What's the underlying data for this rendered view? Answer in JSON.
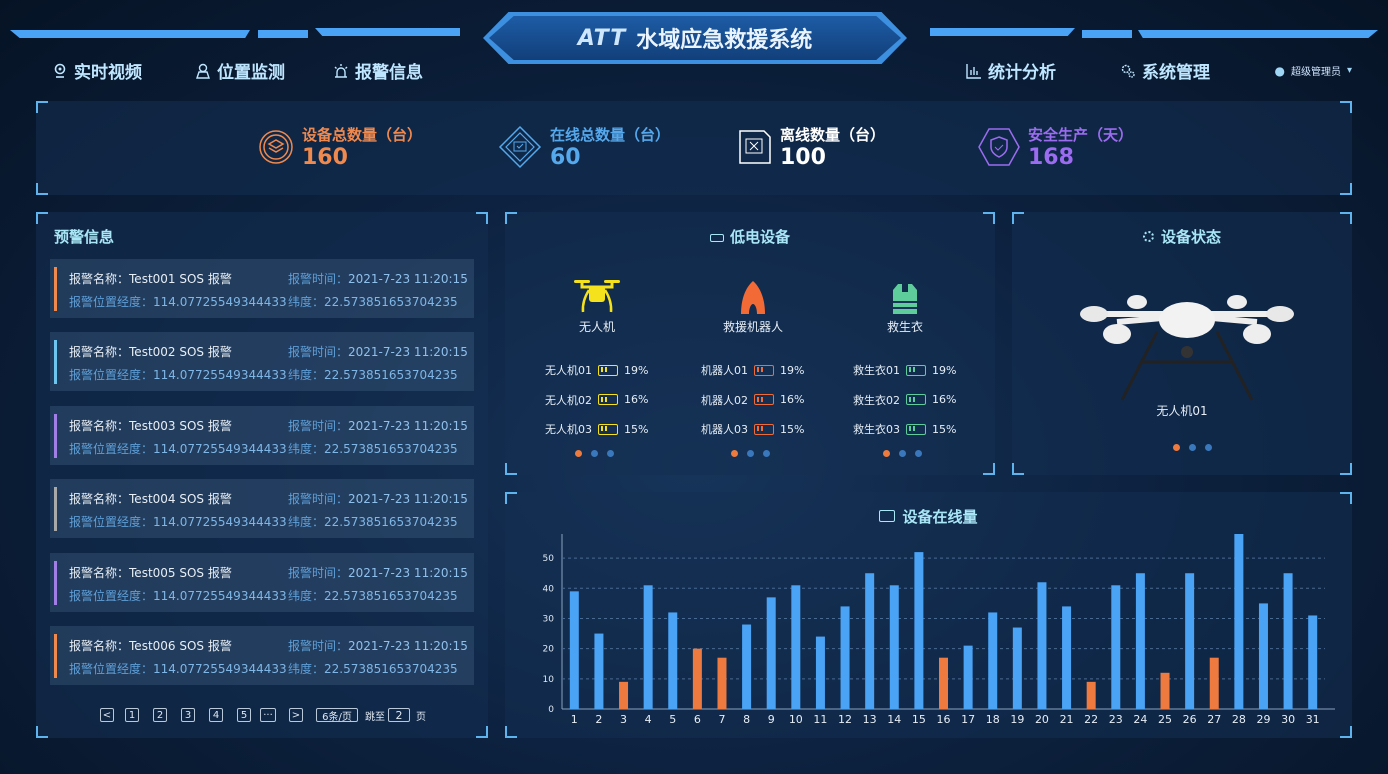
{
  "header": {
    "logo": "ATT",
    "title": "水域应急救援系统",
    "nav_left": [
      {
        "label": "实时视频",
        "icon": "location-pin-icon"
      },
      {
        "label": "位置监测",
        "icon": "map-marker-icon"
      },
      {
        "label": "报警信息",
        "icon": "alarm-light-icon"
      }
    ],
    "nav_right": [
      {
        "label": "统计分析",
        "icon": "bar-chart-icon"
      },
      {
        "label": "系统管理",
        "icon": "gears-icon"
      }
    ],
    "user": "超级管理员"
  },
  "stats": [
    {
      "label": "设备总数量（台）",
      "value": "160",
      "color": "#f0894e",
      "icon": "layers-icon"
    },
    {
      "label": "在线总数量（台）",
      "value": "60",
      "color": "#55a8ec",
      "icon": "monitor-check-icon"
    },
    {
      "label": "离线数量（台）",
      "value": "100",
      "color": "#ffffff",
      "icon": "monitor-x-icon"
    },
    {
      "label": "安全生产（天）",
      "value": "168",
      "color": "#9b6cf0",
      "icon": "shield-check-icon"
    }
  ],
  "alerts": {
    "title": "预警信息",
    "name_label": "报警名称：",
    "time_label": "报警时间：",
    "lng_label": "报警位置经度：",
    "lat_label": "纬度：",
    "items": [
      {
        "name": "Test001 SOS 报警",
        "time": "2021-7-23 11:20:15",
        "lng": "114.07725549344433",
        "lat": "22.573851653704235",
        "color": "#f0894e"
      },
      {
        "name": "Test002 SOS 报警",
        "time": "2021-7-23 11:20:15",
        "lng": "114.07725549344433",
        "lat": "22.573851653704235",
        "color": "#6ec6f0"
      },
      {
        "name": "Test003 SOS 报警",
        "time": "2021-7-23 11:20:15",
        "lng": "114.07725549344433",
        "lat": "22.573851653704235",
        "color": "#a17de6"
      },
      {
        "name": "Test004 SOS 报警",
        "time": "2021-7-23 11:20:15",
        "lng": "114.07725549344433",
        "lat": "22.573851653704235",
        "color": "#a9a9a9"
      },
      {
        "name": "Test005 SOS 报警",
        "time": "2021-7-23 11:20:15",
        "lng": "114.07725549344433",
        "lat": "22.573851653704235",
        "color": "#a17de6"
      },
      {
        "name": "Test006 SOS 报警",
        "time": "2021-7-23 11:20:15",
        "lng": "114.07725549344433",
        "lat": "22.573851653704235",
        "color": "#f0894e"
      }
    ],
    "pagination": {
      "prev": "<",
      "pages": [
        "1",
        "2",
        "3",
        "4",
        "5"
      ],
      "ellipsis": "···",
      "next": ">",
      "page_size": "6条/页",
      "jump_label": "跳至",
      "jump_value": "2",
      "page_unit": "页"
    }
  },
  "low_power": {
    "title": "低电设备",
    "groups": [
      {
        "name": "无人机",
        "color": "#f5e21d",
        "icon": "drone-icon",
        "items": [
          {
            "name": "无人机01",
            "level": "19%"
          },
          {
            "name": "无人机02",
            "level": "16%"
          },
          {
            "name": "无人机03",
            "level": "15%"
          }
        ]
      },
      {
        "name": "救援机器人",
        "color": "#f26a35",
        "icon": "rescue-robot-icon",
        "items": [
          {
            "name": "机器人01",
            "level": "19%"
          },
          {
            "name": "机器人02",
            "level": "16%"
          },
          {
            "name": "机器人03",
            "level": "15%"
          }
        ]
      },
      {
        "name": "救生衣",
        "color": "#5fcc9c",
        "icon": "life-vest-icon",
        "items": [
          {
            "name": "救生衣01",
            "level": "19%"
          },
          {
            "name": "救生衣02",
            "level": "16%"
          },
          {
            "name": "救生衣03",
            "level": "15%"
          }
        ]
      }
    ]
  },
  "device_status": {
    "title": "设备状态",
    "device": "无人机01"
  },
  "chart_data": {
    "type": "bar",
    "title": "设备在线量",
    "xlabel": "",
    "ylabel": "",
    "categories": [
      "1",
      "2",
      "3",
      "4",
      "5",
      "6",
      "7",
      "8",
      "9",
      "10",
      "11",
      "12",
      "13",
      "14",
      "15",
      "16",
      "17",
      "18",
      "19",
      "20",
      "21",
      "22",
      "23",
      "24",
      "25",
      "26",
      "27",
      "28",
      "29",
      "30",
      "31"
    ],
    "values": [
      39,
      25,
      9,
      41,
      32,
      20,
      17,
      28,
      37,
      41,
      24,
      34,
      45,
      41,
      52,
      17,
      21,
      32,
      27,
      42,
      34,
      9,
      41,
      45,
      12,
      45,
      17,
      58,
      35,
      45,
      31
    ],
    "ylim": [
      0,
      58
    ],
    "yticks": [
      0,
      10,
      20,
      30,
      40,
      50
    ],
    "grid": true,
    "colors": {
      "normal": "#4aa3f5",
      "low": "#ee7a3f"
    }
  }
}
